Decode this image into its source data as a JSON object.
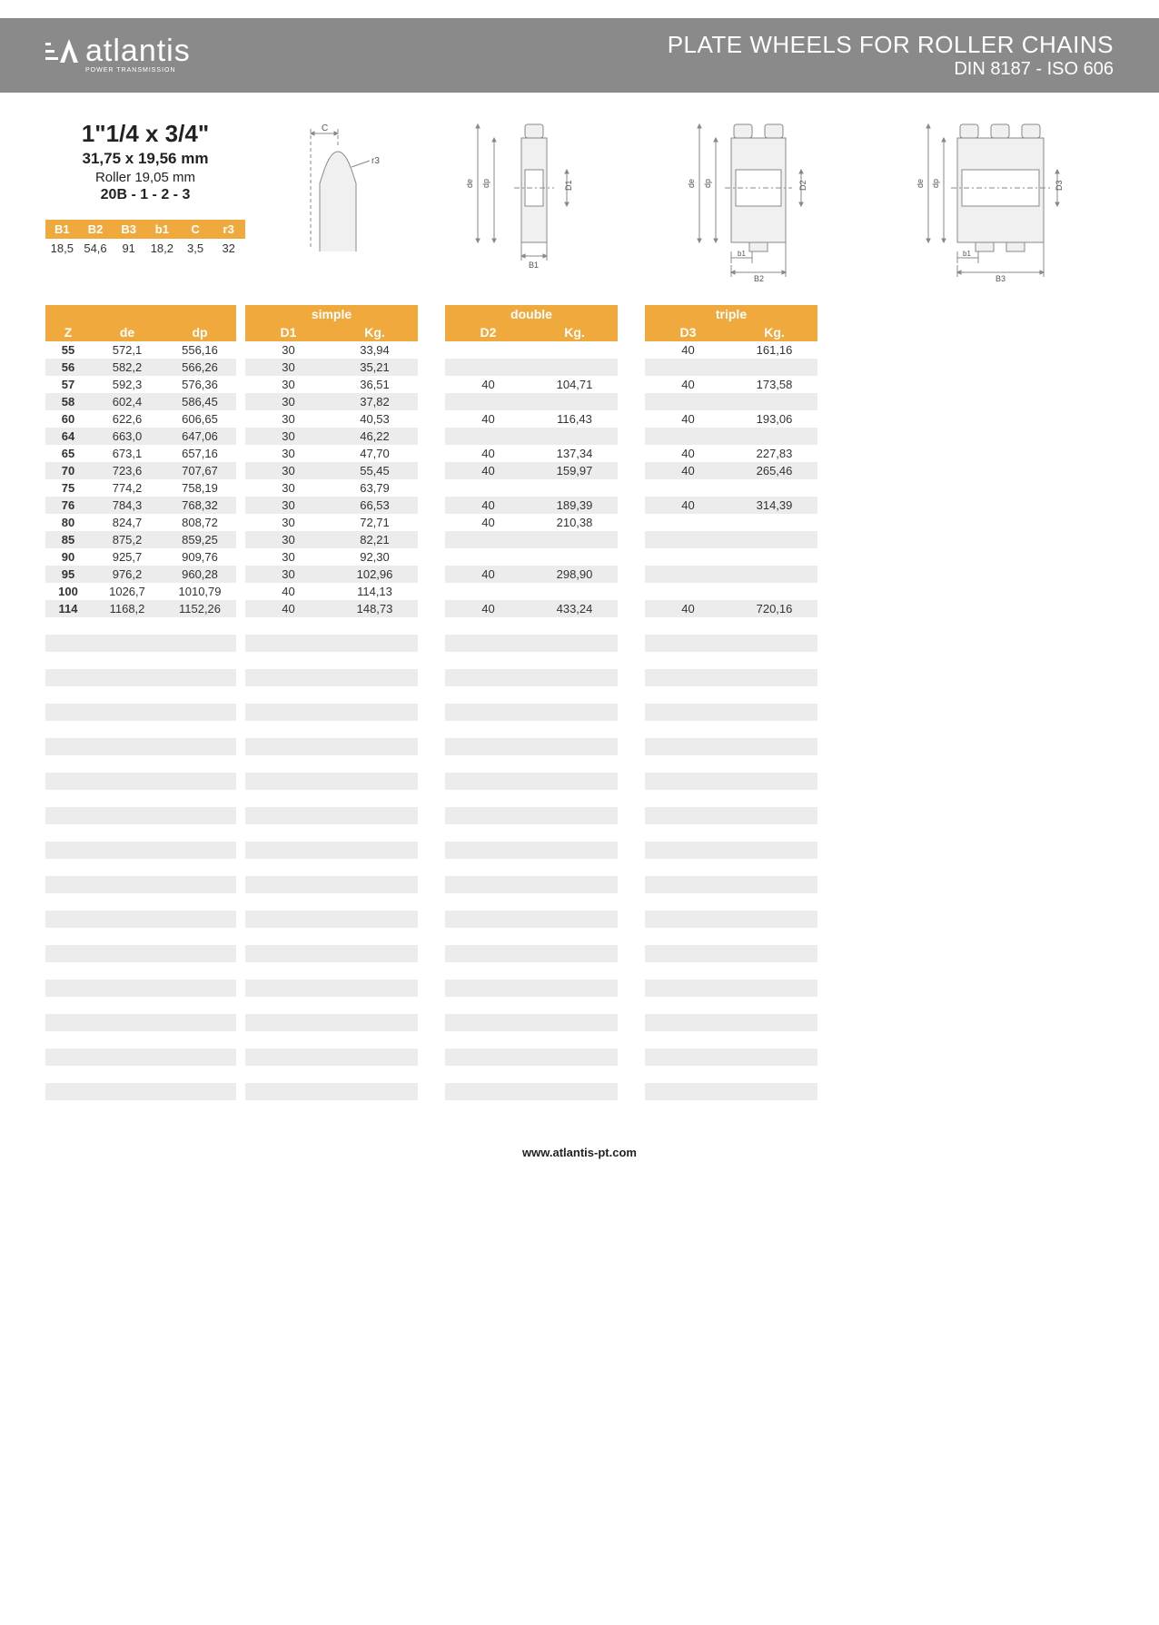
{
  "header": {
    "logo_text": "atlantis",
    "logo_sub": "POWER TRANSMISSION",
    "title_main": "PLATE WHEELS FOR ROLLER CHAINS",
    "title_sub": "DIN 8187 - ISO 606"
  },
  "spec": {
    "title": "1\"1/4 x 3/4\"",
    "line1": "31,75 x 19,56 mm",
    "line2": "Roller 19,05 mm",
    "line3": "20B - 1 - 2 - 3"
  },
  "small_table": {
    "headers": [
      "B1",
      "B2",
      "B3",
      "b1",
      "C",
      "r3"
    ],
    "values": [
      "18,5",
      "54,6",
      "91",
      "18,2",
      "3,5",
      "32"
    ]
  },
  "diagram_labels": {
    "c": "C",
    "r3": "r3",
    "de": "de",
    "dp": "dp",
    "d1": "D1",
    "d2": "D2",
    "d3": "D3",
    "b1": "B1",
    "b1s": "b1",
    "b2": "B2",
    "b3": "B3"
  },
  "main_table": {
    "group_titles": {
      "simple": "simple",
      "double": "double",
      "triple": "triple"
    },
    "zde_headers": [
      "Z",
      "de",
      "dp"
    ],
    "dk_headers": {
      "simple": [
        "D1",
        "Kg."
      ],
      "double": [
        "D2",
        "Kg."
      ],
      "triple": [
        "D3",
        "Kg."
      ]
    },
    "rows": [
      {
        "z": "55",
        "de": "572,1",
        "dp": "556,16",
        "s": [
          "30",
          "33,94"
        ],
        "d": [
          "",
          ""
        ],
        "t": [
          "40",
          "161,16"
        ]
      },
      {
        "z": "56",
        "de": "582,2",
        "dp": "566,26",
        "s": [
          "30",
          "35,21"
        ],
        "d": [
          "",
          ""
        ],
        "t": [
          "",
          ""
        ]
      },
      {
        "z": "57",
        "de": "592,3",
        "dp": "576,36",
        "s": [
          "30",
          "36,51"
        ],
        "d": [
          "40",
          "104,71"
        ],
        "t": [
          "40",
          "173,58"
        ]
      },
      {
        "z": "58",
        "de": "602,4",
        "dp": "586,45",
        "s": [
          "30",
          "37,82"
        ],
        "d": [
          "",
          ""
        ],
        "t": [
          "",
          ""
        ]
      },
      {
        "z": "60",
        "de": "622,6",
        "dp": "606,65",
        "s": [
          "30",
          "40,53"
        ],
        "d": [
          "40",
          "116,43"
        ],
        "t": [
          "40",
          "193,06"
        ]
      },
      {
        "z": "64",
        "de": "663,0",
        "dp": "647,06",
        "s": [
          "30",
          "46,22"
        ],
        "d": [
          "",
          ""
        ],
        "t": [
          "",
          ""
        ]
      },
      {
        "z": "65",
        "de": "673,1",
        "dp": "657,16",
        "s": [
          "30",
          "47,70"
        ],
        "d": [
          "40",
          "137,34"
        ],
        "t": [
          "40",
          "227,83"
        ]
      },
      {
        "z": "70",
        "de": "723,6",
        "dp": "707,67",
        "s": [
          "30",
          "55,45"
        ],
        "d": [
          "40",
          "159,97"
        ],
        "t": [
          "40",
          "265,46"
        ]
      },
      {
        "z": "75",
        "de": "774,2",
        "dp": "758,19",
        "s": [
          "30",
          "63,79"
        ],
        "d": [
          "",
          ""
        ],
        "t": [
          "",
          ""
        ]
      },
      {
        "z": "76",
        "de": "784,3",
        "dp": "768,32",
        "s": [
          "30",
          "66,53"
        ],
        "d": [
          "40",
          "189,39"
        ],
        "t": [
          "40",
          "314,39"
        ]
      },
      {
        "z": "80",
        "de": "824,7",
        "dp": "808,72",
        "s": [
          "30",
          "72,71"
        ],
        "d": [
          "40",
          "210,38"
        ],
        "t": [
          "",
          ""
        ]
      },
      {
        "z": "85",
        "de": "875,2",
        "dp": "859,25",
        "s": [
          "30",
          "82,21"
        ],
        "d": [
          "",
          ""
        ],
        "t": [
          "",
          ""
        ]
      },
      {
        "z": "90",
        "de": "925,7",
        "dp": "909,76",
        "s": [
          "30",
          "92,30"
        ],
        "d": [
          "",
          ""
        ],
        "t": [
          "",
          ""
        ]
      },
      {
        "z": "95",
        "de": "976,2",
        "dp": "960,28",
        "s": [
          "30",
          "102,96"
        ],
        "d": [
          "40",
          "298,90"
        ],
        "t": [
          "",
          ""
        ]
      },
      {
        "z": "100",
        "de": "1026,7",
        "dp": "1010,79",
        "s": [
          "40",
          "114,13"
        ],
        "d": [
          "",
          ""
        ],
        "t": [
          "",
          ""
        ]
      },
      {
        "z": "114",
        "de": "1168,2",
        "dp": "1152,26",
        "s": [
          "40",
          "148,73"
        ],
        "d": [
          "40",
          "433,24"
        ],
        "t": [
          "40",
          "720,16"
        ]
      }
    ],
    "empty_rows": 28
  },
  "footer": {
    "url": "www.atlantis-pt.com"
  },
  "colors": {
    "header_bg": "#8a8a8a",
    "accent": "#f0a93c",
    "row_alt": "#ececec",
    "text": "#333333"
  }
}
